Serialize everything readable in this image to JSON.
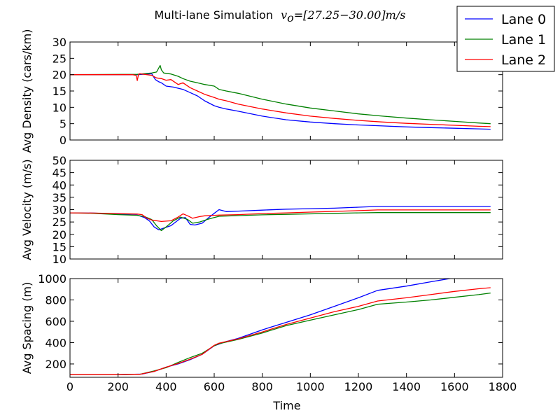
{
  "chart_data": {
    "title_prefix": "Multi-lane Simulation",
    "title_formula": "v",
    "title_subscript": "o",
    "title_suffix": "=[27.25−30.00]m/s",
    "xlabel": "Time",
    "legend_position": "top-right",
    "series_names": [
      "Lane 0",
      "Lane 1",
      "Lane 2"
    ],
    "colors": [
      "#0000ff",
      "#008000",
      "#ff0000"
    ],
    "xlim": [
      0,
      1800
    ],
    "x_ticks": [
      0,
      200,
      400,
      600,
      800,
      1000,
      1200,
      1400,
      1600,
      1800
    ],
    "charts": [
      {
        "type": "line",
        "ylabel": "Avg Density (cars/km)",
        "ylim": [
          0,
          30
        ],
        "y_ticks": [
          0,
          5,
          10,
          15,
          20,
          25,
          30
        ],
        "series": [
          {
            "x": [
              0,
              280,
              340,
              355,
              370,
              380,
              400,
              430,
              470,
              500,
              530,
              560,
              600,
              620,
              650,
              700,
              800,
              900,
              1000,
              1100,
              1200,
              1300,
              1400,
              1500,
              1600,
              1700,
              1750
            ],
            "y": [
              20,
              20,
              20.3,
              18.5,
              17.8,
              17.5,
              16.5,
              16.2,
              15.5,
              14.5,
              13.5,
              12.0,
              10.5,
              10.0,
              9.5,
              8.8,
              7.3,
              6.2,
              5.5,
              5.0,
              4.6,
              4.3,
              4.0,
              3.8,
              3.6,
              3.4,
              3.3
            ]
          },
          {
            "x": [
              0,
              280,
              340,
              360,
              375,
              380,
              390,
              420,
              450,
              470,
              500,
              530,
              560,
              600,
              620,
              650,
              700,
              800,
              900,
              1000,
              1100,
              1200,
              1300,
              1400,
              1500,
              1600,
              1700,
              1750
            ],
            "y": [
              20,
              20.1,
              20.5,
              20.8,
              22.8,
              21.5,
              20.5,
              20.2,
              19.5,
              18.8,
              18.0,
              17.5,
              17.0,
              16.5,
              15.5,
              15.0,
              14.3,
              12.5,
              11.0,
              9.8,
              8.9,
              8.0,
              7.3,
              6.7,
              6.2,
              5.7,
              5.2,
              5.0
            ]
          },
          {
            "x": [
              0,
              260,
              275,
              280,
              285,
              290,
              340,
              360,
              380,
              400,
              420,
              450,
              470,
              500,
              530,
              560,
              600,
              620,
              650,
              700,
              800,
              900,
              1000,
              1100,
              1200,
              1300,
              1400,
              1500,
              1600,
              1700,
              1750
            ],
            "y": [
              20,
              20,
              19.8,
              18.2,
              20.0,
              20.3,
              19.8,
              19.0,
              18.8,
              18.3,
              18.5,
              17.0,
              17.5,
              16.0,
              15.0,
              14.0,
              13.0,
              12.5,
              12.0,
              11.0,
              9.5,
              8.3,
              7.3,
              6.6,
              6.0,
              5.5,
              5.1,
              4.8,
              4.5,
              4.2,
              4.1
            ]
          }
        ]
      },
      {
        "type": "line",
        "ylabel": "Avg Velocity (m/s)",
        "ylim": [
          10,
          50
        ],
        "y_ticks": [
          10,
          15,
          20,
          25,
          30,
          35,
          40,
          45,
          50
        ],
        "series": [
          {
            "x": [
              0,
              100,
              200,
              280,
              310,
              330,
              350,
              370,
              390,
              420,
              460,
              480,
              500,
              520,
              550,
              580,
              600,
              620,
              650,
              700,
              800,
              900,
              1000,
              1100,
              1200,
              1280,
              1400,
              1500,
              1600,
              1700,
              1750
            ],
            "y": [
              28.7,
              28.6,
              28.2,
              27.8,
              26.8,
              25.5,
              23.0,
              21.8,
              22.5,
              23.5,
              26.5,
              26.8,
              24.0,
              23.8,
              24.5,
              27.0,
              28.5,
              30.0,
              29.2,
              29.4,
              29.8,
              30.2,
              30.4,
              30.6,
              31.0,
              31.3,
              31.3,
              31.3,
              31.3,
              31.3,
              31.3
            ]
          },
          {
            "x": [
              0,
              100,
              200,
              280,
              310,
              340,
              360,
              380,
              400,
              430,
              460,
              490,
              510,
              540,
              570,
              600,
              620,
              700,
              800,
              900,
              1000,
              1100,
              1200,
              1280,
              1400,
              1500,
              1600,
              1700,
              1750
            ],
            "y": [
              28.7,
              28.5,
              28.0,
              27.7,
              27.2,
              26.0,
              23.5,
              21.5,
              23.0,
              25.5,
              27.0,
              26.0,
              24.5,
              25.0,
              26.0,
              26.8,
              27.3,
              27.6,
              27.9,
              28.1,
              28.3,
              28.5,
              28.7,
              28.8,
              28.8,
              28.8,
              28.8,
              28.8,
              28.8
            ]
          },
          {
            "x": [
              0,
              100,
              200,
              280,
              300,
              320,
              340,
              380,
              420,
              450,
              470,
              490,
              510,
              540,
              560,
              600,
              620,
              700,
              800,
              900,
              1000,
              1100,
              1200,
              1280,
              1400,
              1500,
              1600,
              1700,
              1750
            ],
            "y": [
              28.7,
              28.6,
              28.4,
              28.2,
              28.0,
              26.5,
              25.8,
              25.2,
              25.5,
              27.0,
              28.3,
              27.5,
              26.5,
              27.2,
              27.5,
              27.7,
              27.8,
              28.0,
              28.4,
              28.7,
              29.0,
              29.3,
              29.6,
              29.9,
              29.9,
              29.9,
              29.9,
              29.9,
              29.9
            ]
          }
        ]
      },
      {
        "type": "line",
        "ylabel": "Avg Spacing (m)",
        "ylim": [
          75,
          1000
        ],
        "y_ticks": [
          200,
          400,
          600,
          800,
          1000
        ],
        "series": [
          {
            "x": [
              0,
              200,
              300,
              350,
              400,
              450,
              500,
              550,
              600,
              650,
              700,
              800,
              900,
              1000,
              1100,
              1200,
              1280,
              1400,
              1500,
              1580,
              1620
            ],
            "y": [
              100,
              100,
              105,
              130,
              170,
              200,
              240,
              290,
              370,
              410,
              440,
              520,
              590,
              660,
              740,
              820,
              890,
              930,
              970,
              1000,
              1010
            ]
          },
          {
            "x": [
              0,
              200,
              290,
              350,
              400,
              450,
              500,
              550,
              600,
              620,
              700,
              800,
              900,
              1000,
              1100,
              1200,
              1280,
              1400,
              1500,
              1600,
              1700,
              1750
            ],
            "y": [
              100,
              100,
              103,
              135,
              165,
              215,
              260,
              300,
              370,
              390,
              430,
              490,
              560,
              610,
              660,
              710,
              760,
              780,
              800,
              825,
              850,
              865
            ]
          },
          {
            "x": [
              0,
              200,
              290,
              350,
              400,
              450,
              500,
              550,
              600,
              620,
              700,
              800,
              900,
              1000,
              1100,
              1200,
              1280,
              1400,
              1500,
              1600,
              1700,
              1750
            ],
            "y": [
              100,
              100,
              103,
              130,
              170,
              205,
              245,
              290,
              375,
              395,
              435,
              500,
              570,
              630,
              690,
              740,
              790,
              820,
              850,
              880,
              905,
              915
            ]
          }
        ]
      }
    ]
  }
}
